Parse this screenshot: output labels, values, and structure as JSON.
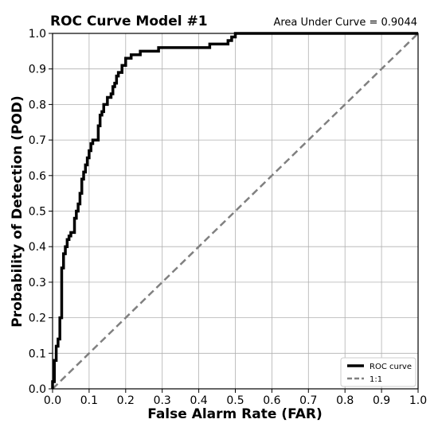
{
  "chart_data": {
    "type": "line",
    "title": "ROC Curve Model #1",
    "subtitle": "Area Under Curve = 0.9044",
    "xlabel": "False Alarm Rate (FAR)",
    "ylabel": "Probability of Detection (POD)",
    "xlim": [
      0,
      1
    ],
    "ylim": [
      0,
      1
    ],
    "xticks": [
      "0.0",
      "0.1",
      "0.2",
      "0.3",
      "0.4",
      "0.5",
      "0.6",
      "0.7",
      "0.8",
      "0.9",
      "1.0"
    ],
    "yticks": [
      "0.0",
      "0.1",
      "0.2",
      "0.3",
      "0.4",
      "0.5",
      "0.6",
      "0.7",
      "0.8",
      "0.9",
      "1.0"
    ],
    "grid": true,
    "legend_position": "lower-right",
    "series": [
      {
        "name": "ROC curve",
        "color": "#000000",
        "style": "solid",
        "x": [
          0.0,
          0.0,
          0.005,
          0.005,
          0.01,
          0.01,
          0.015,
          0.015,
          0.02,
          0.02,
          0.025,
          0.025,
          0.03,
          0.03,
          0.035,
          0.035,
          0.04,
          0.04,
          0.045,
          0.045,
          0.05,
          0.05,
          0.06,
          0.06,
          0.065,
          0.065,
          0.07,
          0.07,
          0.075,
          0.075,
          0.08,
          0.08,
          0.085,
          0.085,
          0.09,
          0.09,
          0.095,
          0.095,
          0.1,
          0.1,
          0.105,
          0.105,
          0.11,
          0.11,
          0.125,
          0.125,
          0.13,
          0.13,
          0.135,
          0.135,
          0.14,
          0.14,
          0.15,
          0.15,
          0.16,
          0.16,
          0.165,
          0.165,
          0.17,
          0.17,
          0.175,
          0.175,
          0.18,
          0.18,
          0.19,
          0.19,
          0.2,
          0.2,
          0.215,
          0.215,
          0.24,
          0.24,
          0.29,
          0.29,
          0.33,
          0.33,
          0.43,
          0.43,
          0.48,
          0.48,
          0.49,
          0.49,
          0.5,
          0.5,
          1.0
        ],
        "y": [
          0.0,
          0.02,
          0.02,
          0.08,
          0.08,
          0.12,
          0.12,
          0.14,
          0.14,
          0.2,
          0.2,
          0.34,
          0.34,
          0.38,
          0.38,
          0.4,
          0.4,
          0.42,
          0.42,
          0.43,
          0.43,
          0.44,
          0.44,
          0.48,
          0.48,
          0.5,
          0.5,
          0.52,
          0.52,
          0.55,
          0.55,
          0.59,
          0.59,
          0.61,
          0.61,
          0.63,
          0.63,
          0.65,
          0.65,
          0.67,
          0.67,
          0.69,
          0.69,
          0.7,
          0.7,
          0.74,
          0.74,
          0.77,
          0.77,
          0.78,
          0.78,
          0.8,
          0.8,
          0.82,
          0.82,
          0.83,
          0.83,
          0.85,
          0.85,
          0.86,
          0.86,
          0.88,
          0.88,
          0.89,
          0.89,
          0.91,
          0.91,
          0.93,
          0.93,
          0.94,
          0.94,
          0.95,
          0.95,
          0.96,
          0.96,
          0.96,
          0.96,
          0.97,
          0.97,
          0.98,
          0.98,
          0.99,
          0.99,
          1.0,
          1.0
        ]
      },
      {
        "name": "1:1",
        "color": "#808080",
        "style": "dashed",
        "x": [
          0,
          1
        ],
        "y": [
          0,
          1
        ]
      }
    ]
  }
}
